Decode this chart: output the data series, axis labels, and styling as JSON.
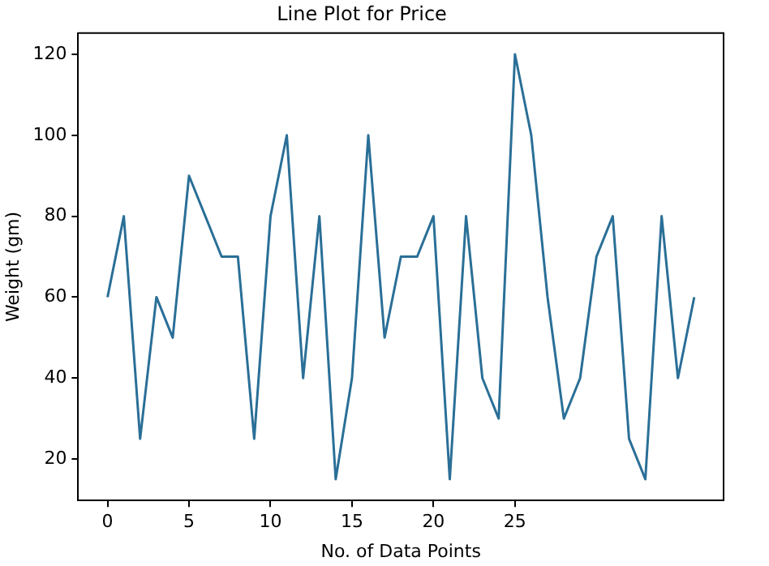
{
  "chart_data": {
    "type": "line",
    "title": "Line Plot for Price",
    "xlabel": "No. of Data Points",
    "ylabel": "Weight (gm)",
    "x": [
      0,
      1,
      2,
      3,
      4,
      5,
      6,
      7,
      8,
      9,
      10,
      11,
      12,
      13,
      14,
      15,
      16,
      17,
      18,
      19,
      20,
      21,
      22,
      23,
      24,
      25,
      26,
      27,
      28,
      29,
      30,
      31,
      32,
      33,
      34,
      35,
      36
    ],
    "series": [
      {
        "color": "#2a6f97",
        "values": [
          60,
          80,
          25,
          60,
          50,
          90,
          80,
          70,
          70,
          25,
          80,
          100,
          40,
          80,
          15,
          40,
          100,
          50,
          70,
          70,
          80,
          15,
          80,
          40,
          30,
          120,
          100,
          60,
          30,
          40,
          70,
          80,
          25,
          15,
          80,
          40,
          60
        ]
      }
    ],
    "xlim": [
      -1.8,
      37.8
    ],
    "xticks": [
      0,
      5,
      10,
      15,
      20,
      25
    ],
    "ylim": [
      9.75,
      125.25
    ],
    "yticks": [
      20,
      40,
      60,
      80,
      100,
      120
    ],
    "grid": false,
    "legend": false,
    "marker": "none",
    "line_style": "solid"
  }
}
